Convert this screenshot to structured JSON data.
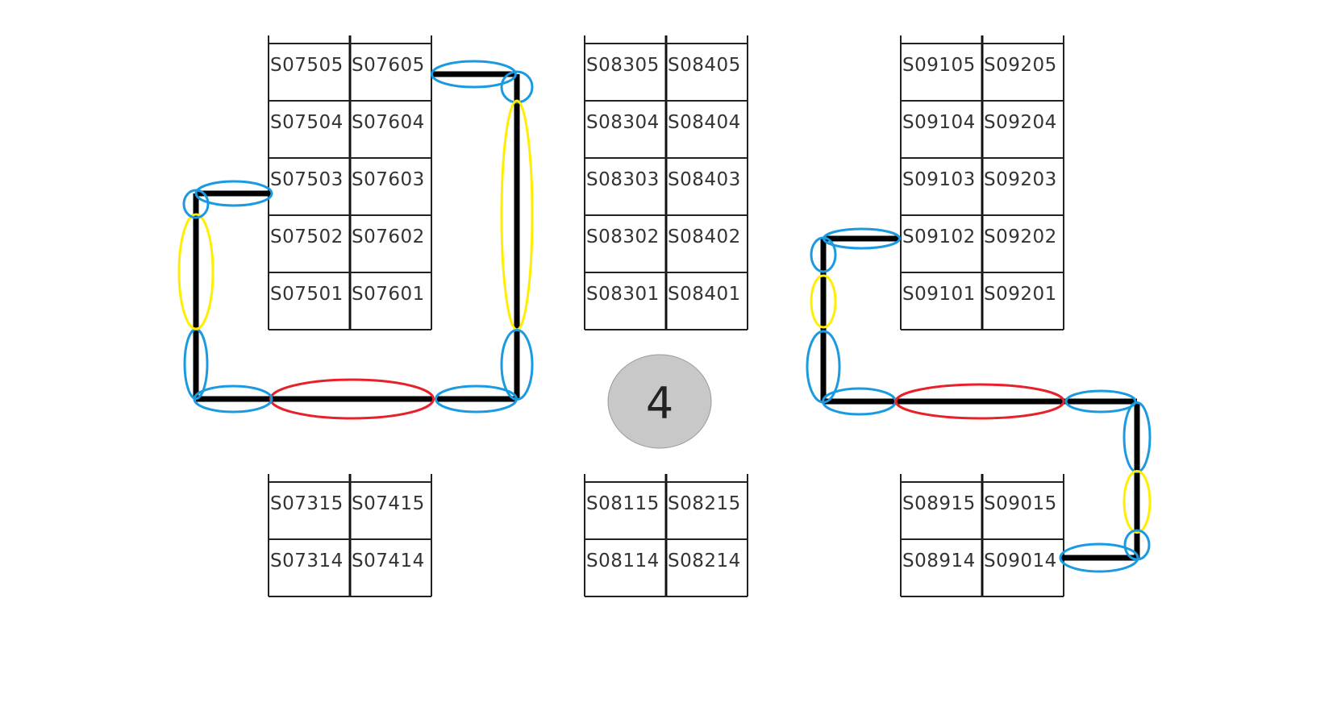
{
  "colors": {
    "background": "#ffffff",
    "grid": "#222222",
    "path": "#000000",
    "short_segment_ellipse": "#1a9ae0",
    "medium_segment_ellipse": "#ffee00",
    "long_segment_ellipse": "#e8202a",
    "hub_fill": "#c8c8c8"
  },
  "hub": {
    "label": "4"
  },
  "blocks": [
    {
      "name": "block-075-076",
      "rows": [
        [
          "S07505",
          "S07605"
        ],
        [
          "S07504",
          "S07604"
        ],
        [
          "S07503",
          "S07603"
        ],
        [
          "S07502",
          "S07602"
        ],
        [
          "S07501",
          "S07601"
        ]
      ]
    },
    {
      "name": "block-083-084",
      "rows": [
        [
          "S08305",
          "S08405"
        ],
        [
          "S08304",
          "S08404"
        ],
        [
          "S08303",
          "S08403"
        ],
        [
          "S08302",
          "S08402"
        ],
        [
          "S08301",
          "S08401"
        ]
      ]
    },
    {
      "name": "block-091-092",
      "rows": [
        [
          "S09105",
          "S09205"
        ],
        [
          "S09104",
          "S09204"
        ],
        [
          "S09103",
          "S09203"
        ],
        [
          "S09102",
          "S09202"
        ],
        [
          "S09101",
          "S09201"
        ]
      ]
    },
    {
      "name": "block-073-074",
      "rows": [
        [
          "S07315",
          "S07415"
        ],
        [
          "S07314",
          "S07414"
        ]
      ]
    },
    {
      "name": "block-081-082",
      "rows": [
        [
          "S08115",
          "S08215"
        ],
        [
          "S08114",
          "S08214"
        ]
      ]
    },
    {
      "name": "block-089-090",
      "rows": [
        [
          "S08915",
          "S09015"
        ],
        [
          "S08914",
          "S09014"
        ]
      ]
    }
  ],
  "routes": [
    {
      "name": "left-route",
      "segments": [
        "short",
        "short",
        "medium",
        "short",
        "short",
        "long",
        "short",
        "short",
        "medium",
        "short",
        "short"
      ]
    },
    {
      "name": "right-route",
      "segments": [
        "short",
        "short",
        "medium",
        "short",
        "short",
        "long",
        "short",
        "short",
        "medium",
        "short",
        "short"
      ]
    }
  ]
}
